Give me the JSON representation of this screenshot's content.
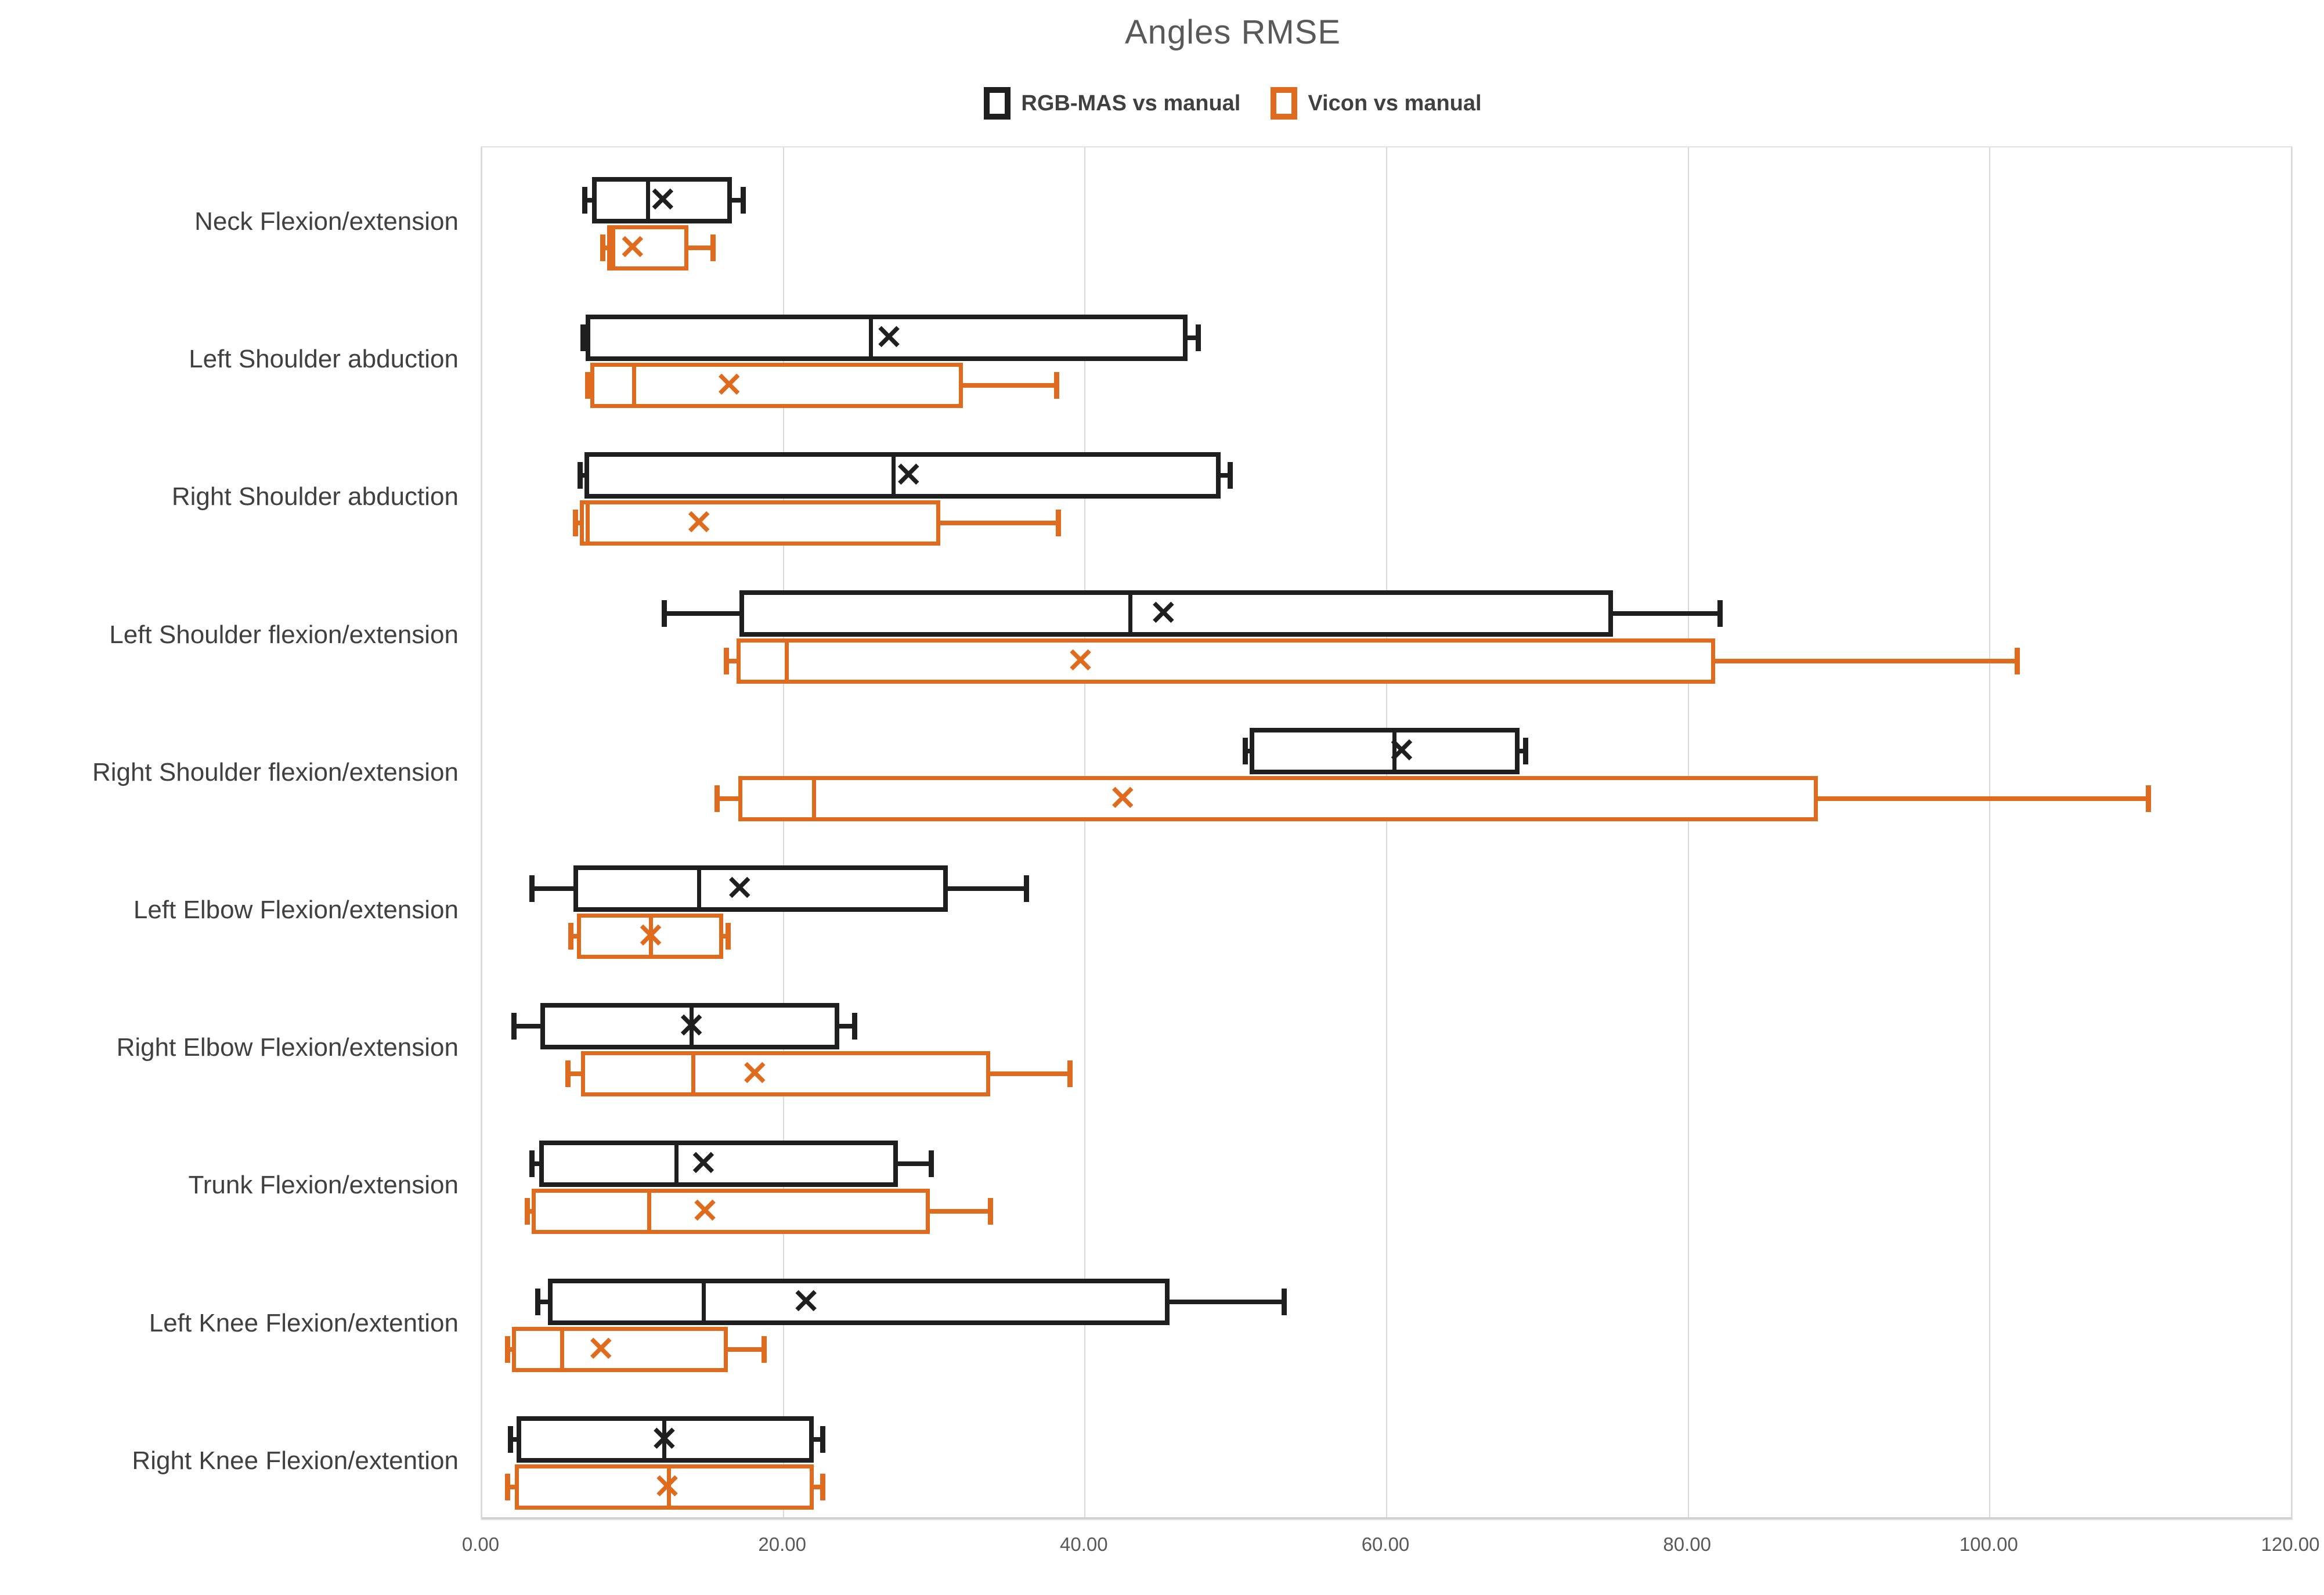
{
  "title": "Angles RMSE",
  "legend": {
    "items": [
      {
        "label": "RGB-MAS vs manual",
        "color": "#1f1f1f"
      },
      {
        "label": "Vicon vs manual",
        "color": "#df6c1e"
      }
    ]
  },
  "chart_data": {
    "type": "boxplot",
    "orientation": "horizontal",
    "title": "Angles RMSE",
    "xlabel": "",
    "ylabel": "",
    "xlim": [
      0,
      120
    ],
    "grid": true,
    "legend_position": "top-center",
    "mean_marker_glyph": "✕",
    "x_ticks": [
      0,
      20,
      40,
      60,
      80,
      100,
      120
    ],
    "x_tick_labels": [
      "0.00",
      "20.00",
      "40.00",
      "60.00",
      "80.00",
      "100.00",
      "120.00"
    ],
    "categories": [
      "Neck Flexion/extension",
      "Left Shoulder abduction",
      "Right Shoulder abduction",
      "Left Shoulder flexion/extension",
      "Right Shoulder flexion/extension",
      "Left Elbow Flexion/extension",
      "Right Elbow Flexion/extension",
      "Trunk Flexion/extension",
      "Left Knee Flexion/extention",
      "Right Knee Flexion/extention"
    ],
    "series": [
      {
        "name": "RGB-MAS vs manual",
        "color": "#1f1f1f",
        "boxes": [
          {
            "min": 6.8,
            "q1": 7.3,
            "median": 11.0,
            "mean": 12.0,
            "q3": 16.6,
            "max": 17.3
          },
          {
            "min": 6.7,
            "q1": 6.9,
            "median": 25.8,
            "mean": 27.0,
            "q3": 46.8,
            "max": 47.5
          },
          {
            "min": 6.5,
            "q1": 6.8,
            "median": 27.3,
            "mean": 28.3,
            "q3": 49.0,
            "max": 49.6
          },
          {
            "min": 12.1,
            "q1": 17.1,
            "median": 43.0,
            "mean": 45.2,
            "q3": 75.0,
            "max": 82.1
          },
          {
            "min": 50.6,
            "q1": 50.9,
            "median": 60.5,
            "mean": 61.0,
            "q3": 68.8,
            "max": 69.2
          },
          {
            "min": 3.3,
            "q1": 6.1,
            "median": 14.4,
            "mean": 17.1,
            "q3": 30.9,
            "max": 36.1
          },
          {
            "min": 2.1,
            "q1": 3.9,
            "median": 13.9,
            "mean": 13.9,
            "q3": 23.7,
            "max": 24.7
          },
          {
            "min": 3.3,
            "q1": 3.8,
            "median": 12.9,
            "mean": 14.7,
            "q3": 27.6,
            "max": 29.8
          },
          {
            "min": 3.7,
            "q1": 4.4,
            "median": 14.7,
            "mean": 21.5,
            "q3": 45.6,
            "max": 53.2
          },
          {
            "min": 1.9,
            "q1": 2.3,
            "median": 12.1,
            "mean": 12.1,
            "q3": 22.0,
            "max": 22.6
          }
        ]
      },
      {
        "name": "Vicon vs manual",
        "color": "#df6c1e",
        "boxes": [
          {
            "min": 8.0,
            "q1": 8.3,
            "median": 8.7,
            "mean": 10.0,
            "q3": 13.7,
            "max": 15.3
          },
          {
            "min": 7.0,
            "q1": 7.2,
            "median": 10.1,
            "mean": 16.4,
            "q3": 31.9,
            "max": 38.1
          },
          {
            "min": 6.2,
            "q1": 6.5,
            "median": 7.0,
            "mean": 14.4,
            "q3": 30.4,
            "max": 38.2
          },
          {
            "min": 16.2,
            "q1": 16.9,
            "median": 20.2,
            "mean": 39.7,
            "q3": 81.8,
            "max": 101.8
          },
          {
            "min": 15.6,
            "q1": 17.0,
            "median": 22.0,
            "mean": 42.5,
            "q3": 88.6,
            "max": 110.5
          },
          {
            "min": 5.9,
            "q1": 6.3,
            "median": 11.2,
            "mean": 11.2,
            "q3": 16.0,
            "max": 16.3
          },
          {
            "min": 5.7,
            "q1": 6.6,
            "median": 14.0,
            "mean": 18.1,
            "q3": 33.7,
            "max": 39.0
          },
          {
            "min": 3.0,
            "q1": 3.3,
            "median": 11.1,
            "mean": 14.8,
            "q3": 29.7,
            "max": 33.7
          },
          {
            "min": 1.7,
            "q1": 2.0,
            "median": 5.3,
            "mean": 7.9,
            "q3": 16.3,
            "max": 18.7
          },
          {
            "min": 1.7,
            "q1": 2.2,
            "median": 12.4,
            "mean": 12.3,
            "q3": 22.0,
            "max": 22.6
          }
        ]
      }
    ]
  }
}
